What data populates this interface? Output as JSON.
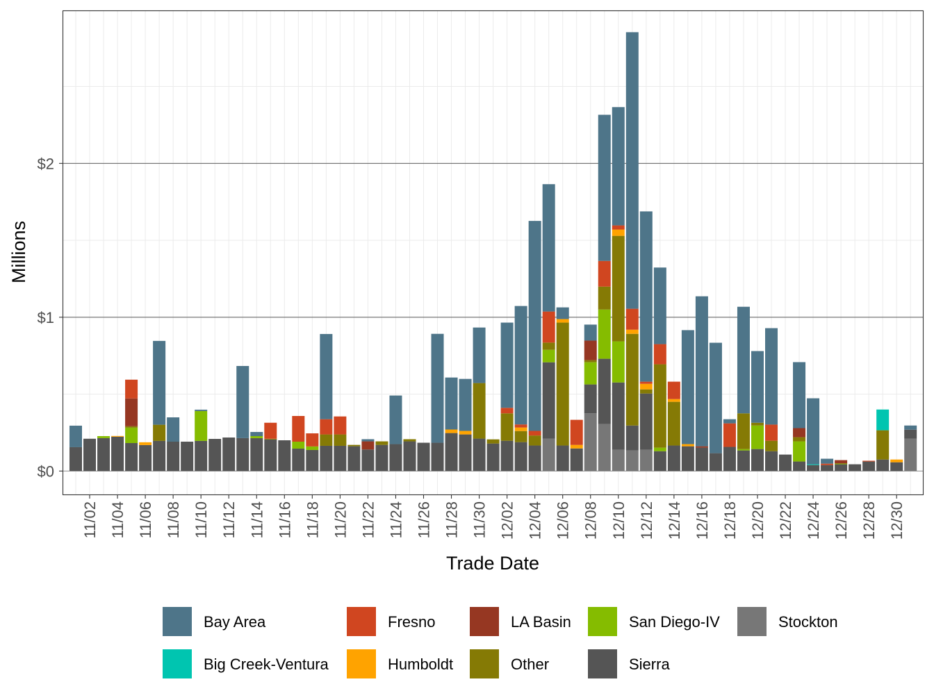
{
  "chart_data": {
    "type": "bar",
    "stacked": true,
    "xlabel": "Trade Date",
    "ylabel": "Millions",
    "ylim": [
      -0.15,
      3.0
    ],
    "y_ticks": [
      0,
      1,
      2
    ],
    "y_tick_labels": [
      "$0",
      "$1",
      "$2"
    ],
    "grid": true,
    "legend_position": "bottom",
    "categories": [
      "11/01",
      "11/02",
      "11/03",
      "11/04",
      "11/05",
      "11/06",
      "11/07",
      "11/08",
      "11/09",
      "11/10",
      "11/11",
      "11/12",
      "11/13",
      "11/14",
      "11/15",
      "11/16",
      "11/17",
      "11/18",
      "11/19",
      "11/20",
      "11/21",
      "11/22",
      "11/23",
      "11/24",
      "11/25",
      "11/26",
      "11/27",
      "11/28",
      "11/29",
      "11/30",
      "12/01",
      "12/02",
      "12/03",
      "12/04",
      "12/05",
      "12/06",
      "12/07",
      "12/08",
      "12/09",
      "12/10",
      "12/11",
      "12/12",
      "12/13",
      "12/14",
      "12/15",
      "12/16",
      "12/17",
      "12/18",
      "12/19",
      "12/20",
      "12/21",
      "12/22",
      "12/23",
      "12/24",
      "12/25",
      "12/26",
      "12/27",
      "12/28",
      "12/29",
      "12/30",
      "12/31"
    ],
    "x_tick_labels": [
      "11/02",
      "11/04",
      "11/06",
      "11/08",
      "11/10",
      "11/12",
      "11/14",
      "11/16",
      "11/18",
      "11/20",
      "11/22",
      "11/24",
      "11/26",
      "11/28",
      "11/30",
      "12/02",
      "12/04",
      "12/06",
      "12/08",
      "12/10",
      "12/12",
      "12/14",
      "12/16",
      "12/18",
      "12/20",
      "12/22",
      "12/24",
      "12/26",
      "12/28",
      "12/30"
    ],
    "series": [
      {
        "name": "Bay Area",
        "color": "#4E7589",
        "values": [
          0.14,
          0,
          0,
          0,
          0,
          0,
          0.545,
          0.158,
          0,
          0.009,
          0,
          0,
          0.469,
          0.027,
          0,
          0,
          0,
          0,
          0.554,
          0,
          0,
          0.014,
          0,
          0.316,
          0,
          0,
          0.708,
          0.338,
          0.338,
          0.361,
          0,
          0.554,
          0.77,
          1.365,
          0.828,
          0.076,
          0,
          0.104,
          0.95,
          0.769,
          1.798,
          1.107,
          0.498,
          0,
          0.741,
          0.975,
          0.718,
          0.027,
          0.693,
          0.466,
          0.627,
          0,
          0.429,
          0.429,
          0.032,
          0,
          0,
          0,
          0,
          0,
          0.027
        ]
      },
      {
        "name": "Big Creek-Ventura",
        "color": "#00C5B0",
        "values": [
          0,
          0,
          0,
          0,
          0,
          0,
          0,
          0,
          0,
          0,
          0,
          0,
          0,
          0,
          0,
          0,
          0,
          0,
          0,
          0,
          0,
          0,
          0,
          0,
          0,
          0,
          0,
          0,
          0,
          0,
          0,
          0,
          0,
          0,
          0,
          0,
          0,
          0,
          0,
          0,
          0,
          0,
          0,
          0,
          0,
          0,
          0,
          0,
          0,
          0,
          0,
          0,
          0,
          0.005,
          0,
          0,
          0,
          0,
          0.135,
          0,
          0
        ]
      },
      {
        "name": "Fresno",
        "color": "#D04620",
        "values": [
          0,
          0,
          0,
          0,
          0.122,
          0,
          0,
          0,
          0,
          0,
          0,
          0,
          0,
          0,
          0.104,
          0,
          0.167,
          0.085,
          0.099,
          0.117,
          0,
          0,
          0,
          0,
          0,
          0,
          0,
          0,
          0,
          0,
          0,
          0.036,
          0.02,
          0.03,
          0.202,
          0,
          0.163,
          0,
          0.167,
          0.027,
          0.136,
          0.014,
          0.131,
          0.113,
          0,
          0,
          0,
          0.153,
          0,
          0,
          0.105,
          0,
          0,
          0,
          0.009,
          0,
          0,
          0.005,
          0,
          0,
          0
        ]
      },
      {
        "name": "Humboldt",
        "color": "#FFA300",
        "values": [
          0,
          0,
          0,
          0.005,
          0,
          0.018,
          0,
          0,
          0,
          0,
          0,
          0,
          0,
          0,
          0,
          0,
          0,
          0,
          0,
          0,
          0,
          0,
          0,
          0,
          0,
          0,
          0,
          0.023,
          0.023,
          0,
          0,
          0,
          0.023,
          0,
          0,
          0.023,
          0.023,
          0,
          0,
          0.041,
          0.027,
          0.036,
          0,
          0.018,
          0.014,
          0,
          0,
          0,
          0,
          0,
          0,
          0,
          0,
          0,
          0,
          0,
          0,
          0,
          0,
          0.018,
          0
        ]
      },
      {
        "name": "LA Basin",
        "color": "#963722",
        "values": [
          0,
          0,
          0,
          0,
          0.181,
          0,
          0,
          0,
          0,
          0,
          0,
          0,
          0,
          0,
          0,
          0,
          0,
          0,
          0,
          0,
          0,
          0.053,
          0,
          0,
          0,
          0,
          0,
          0,
          0,
          0,
          0,
          0,
          0,
          0,
          0,
          0,
          0,
          0.127,
          0,
          0,
          0,
          0,
          0,
          0,
          0,
          0.009,
          0,
          0,
          0,
          0,
          0,
          0,
          0.059,
          0,
          0,
          0.022,
          0,
          0,
          0,
          0,
          0
        ]
      },
      {
        "name": "Other",
        "color": "#857A05",
        "values": [
          0,
          0,
          0,
          0,
          0.009,
          0,
          0.105,
          0,
          0,
          0,
          0,
          0,
          0,
          0,
          0.005,
          0,
          0,
          0,
          0.074,
          0.074,
          0.009,
          0,
          0.023,
          0,
          0.014,
          0,
          0,
          0,
          0,
          0.361,
          0.027,
          0.178,
          0.072,
          0.065,
          0.047,
          0.799,
          0,
          0.014,
          0.149,
          0.686,
          0.596,
          0.027,
          0.542,
          0.284,
          0,
          0,
          0,
          0,
          0.232,
          0.018,
          0.068,
          0,
          0.027,
          0,
          0,
          0,
          0,
          0,
          0.19,
          0,
          0
        ]
      },
      {
        "name": "San Diego-IV",
        "color": "#85BC00",
        "values": [
          0,
          0,
          0.013,
          0,
          0.1,
          0,
          0,
          0,
          0,
          0.194,
          0,
          0,
          0,
          0.013,
          0,
          0,
          0.045,
          0.023,
          0,
          0,
          0,
          0,
          0,
          0,
          0,
          0,
          0,
          0,
          0,
          0,
          0,
          0,
          0,
          0,
          0.081,
          0,
          0,
          0.144,
          0.32,
          0.267,
          0,
          0,
          0.023,
          0,
          0,
          0,
          0,
          0,
          0.009,
          0.153,
          0,
          0,
          0.131,
          0,
          0,
          0.005,
          0,
          0,
          0,
          0,
          0
        ]
      },
      {
        "name": "Sierra",
        "color": "#555555",
        "values": [
          0.155,
          0.21,
          0.214,
          0.223,
          0.182,
          0.169,
          0.196,
          0.191,
          0.191,
          0.196,
          0.209,
          0.218,
          0.214,
          0.214,
          0.205,
          0.2,
          0.146,
          0.137,
          0.164,
          0.164,
          0.161,
          0.14,
          0.17,
          0.175,
          0.193,
          0.184,
          0.184,
          0.247,
          0.238,
          0.211,
          0.179,
          0.197,
          0.188,
          0.166,
          0.496,
          0.166,
          0.147,
          0.188,
          0.425,
          0.438,
          0.162,
          0.366,
          0.129,
          0.166,
          0.161,
          0.152,
          0.116,
          0.157,
          0.134,
          0.143,
          0.129,
          0.107,
          0.062,
          0.039,
          0.039,
          0.044,
          0.044,
          0.062,
          0.075,
          0.057,
          0.058
        ]
      },
      {
        "name": "Stockton",
        "color": "#777777",
        "values": [
          0,
          0,
          0,
          0,
          0,
          0,
          0,
          0,
          0,
          0,
          0,
          0,
          0,
          0,
          0,
          0,
          0,
          0,
          0,
          0,
          0,
          0,
          0,
          0,
          0,
          0,
          0,
          0,
          0,
          0,
          0,
          0,
          0,
          0,
          0.211,
          0,
          0,
          0.375,
          0.305,
          0.138,
          0.134,
          0.138,
          0,
          0,
          0,
          0,
          0,
          0,
          0,
          0,
          0,
          0,
          0,
          0,
          0,
          0,
          0,
          0,
          0,
          0,
          0.211
        ]
      }
    ],
    "legend_rows": [
      [
        "Bay Area",
        "Fresno",
        "LA Basin",
        "San Diego-IV",
        "Stockton"
      ],
      [
        "Big Creek-Ventura",
        "Humboldt",
        "Other",
        "Sierra"
      ]
    ]
  }
}
